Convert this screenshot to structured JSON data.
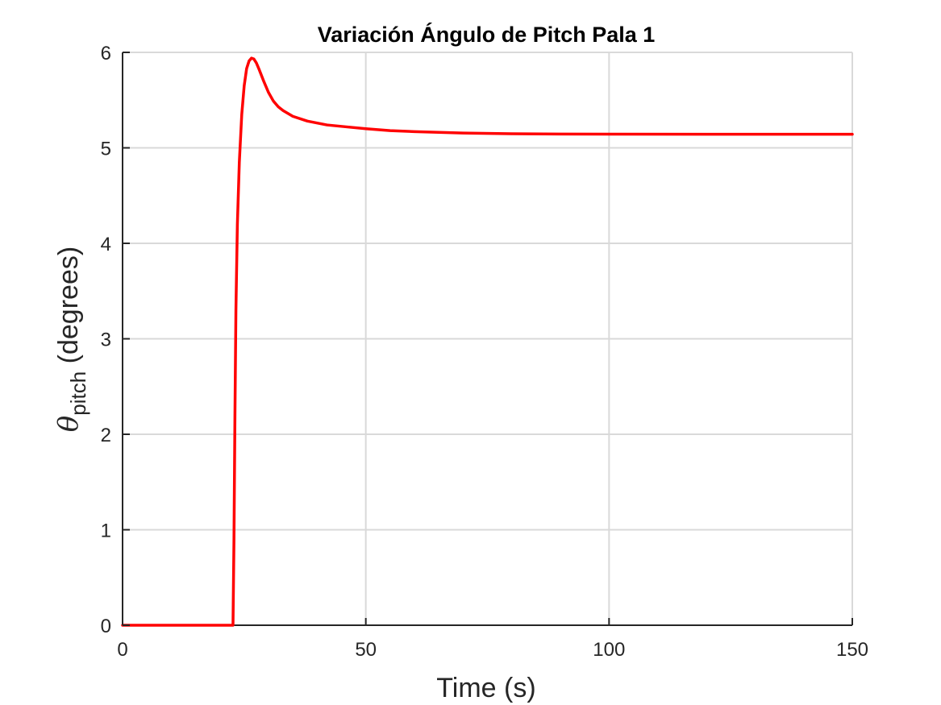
{
  "chart_data": {
    "type": "line",
    "title": "Variación Ángulo de Pitch Pala 1",
    "xlabel": "Time (s)",
    "ylabel": {
      "symbol": "θ",
      "subscript": "pitch",
      "suffix": " (degrees)"
    },
    "xlim": [
      0,
      150
    ],
    "ylim": [
      0,
      6
    ],
    "xticks": [
      0,
      50,
      100,
      150
    ],
    "yticks": [
      0,
      1,
      2,
      3,
      4,
      5,
      6
    ],
    "grid": true,
    "series": [
      {
        "color": "#ff0000",
        "x": [
          0,
          22.7,
          22.9,
          23.1,
          23.3,
          23.6,
          24.0,
          24.5,
          25.0,
          25.5,
          26.0,
          26.5,
          27.0,
          27.5,
          28.0,
          29.0,
          30.0,
          31.0,
          32.0,
          33.0,
          35.0,
          38.0,
          42.0,
          46.0,
          50.0,
          55.0,
          60.0,
          70.0,
          80.0,
          90.0,
          100.0,
          120.0,
          150.0
        ],
        "y": [
          0,
          0,
          0.9,
          2.2,
          3.3,
          4.2,
          4.85,
          5.35,
          5.65,
          5.83,
          5.91,
          5.94,
          5.93,
          5.89,
          5.83,
          5.7,
          5.58,
          5.49,
          5.43,
          5.39,
          5.33,
          5.28,
          5.24,
          5.22,
          5.2,
          5.18,
          5.17,
          5.155,
          5.148,
          5.145,
          5.143,
          5.142,
          5.142
        ]
      }
    ]
  }
}
